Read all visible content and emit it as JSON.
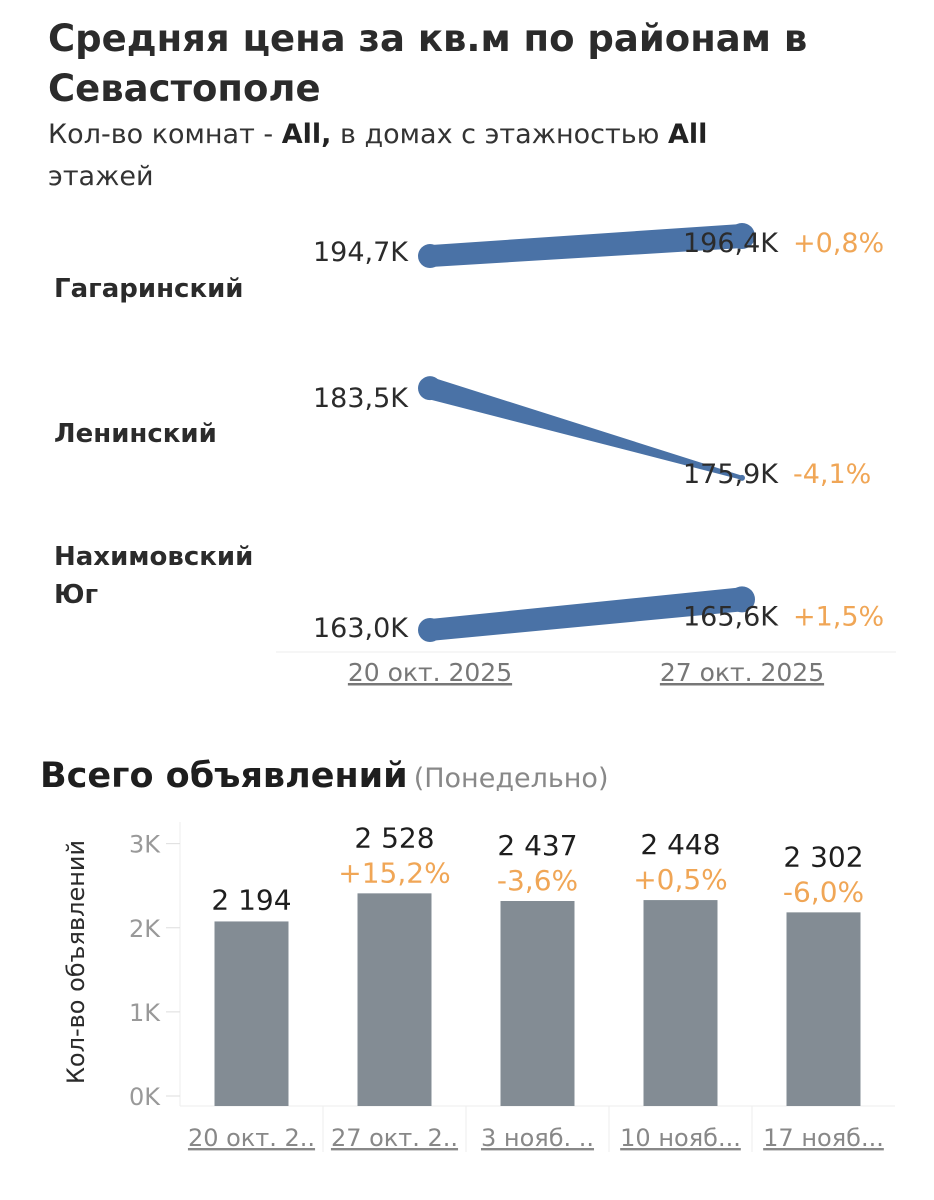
{
  "title": "Средняя цена за кв.м по районам в Севастополе",
  "subtitle": {
    "rooms_prefix": "Кол-во комнат - ",
    "rooms_value": "All,",
    "floors_prefix": " в домах с этажностью ",
    "floors_value": "All",
    "floors_suffix": " этажей"
  },
  "colors": {
    "line": "#4a72a6",
    "positive": "#f0a656",
    "negative": "#f0a656",
    "bar": "#838c94"
  },
  "chart_data": [
    {
      "type": "line",
      "title": "Средняя цена за кв.м по районам в Севастополе",
      "x": [
        "20 окт. 2025",
        "27 окт. 2025"
      ],
      "series": [
        {
          "name": "Гагаринский",
          "values": [
            194.7,
            196.4
          ],
          "labels": [
            "194,7K",
            "196,4K"
          ],
          "change": "+0,8%"
        },
        {
          "name": "Ленинский",
          "values": [
            183.5,
            175.9
          ],
          "labels": [
            "183,5K",
            "175,9K"
          ],
          "change": "-4,1%"
        },
        {
          "name": "Нахимовский Юг",
          "values": [
            163.0,
            165.6
          ],
          "labels": [
            "163,0K",
            "165,6K"
          ],
          "change": "+1,5%"
        }
      ]
    },
    {
      "type": "bar",
      "title": "Всего объявлений",
      "title_note": "(Понедельно)",
      "ylabel": "Кол-во объявлений",
      "ylim": [
        0,
        3400
      ],
      "yticks": [
        0,
        1000,
        2000,
        3000
      ],
      "ytick_labels": [
        "0K",
        "1K",
        "2K",
        "3K"
      ],
      "categories": [
        "20 окт. 2..",
        "27 окт. 2..",
        "3 нояб. ..",
        "10 нояб...",
        "17 нояб..."
      ],
      "values": [
        2194,
        2528,
        2437,
        2448,
        2302
      ],
      "value_labels": [
        "2 194",
        "2 528",
        "2 437",
        "2 448",
        "2 302"
      ],
      "changes": [
        "",
        "+15,2%",
        "-3,6%",
        "+0,5%",
        "-6,0%"
      ]
    }
  ]
}
